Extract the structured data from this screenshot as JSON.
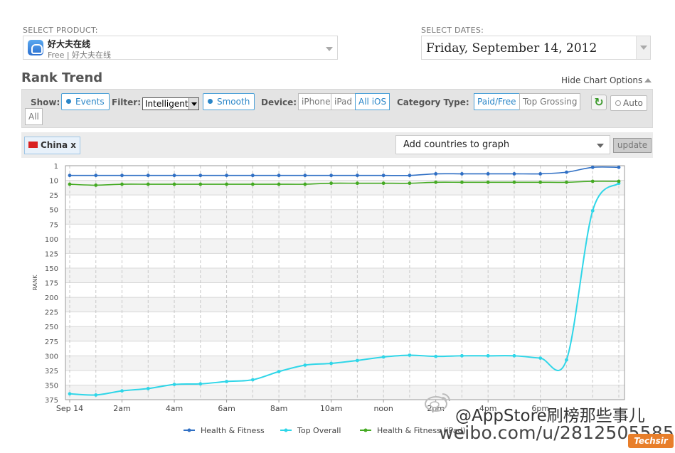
{
  "product": {
    "label": "SELECT PRODUCT:",
    "name": "好大夫在线",
    "subtitle": "Free | 好大夫在线",
    "icon": "heart-app-icon"
  },
  "dates": {
    "label": "SELECT DATES:",
    "value": "Friday, September 14, 2012"
  },
  "header": {
    "title": "Rank Trend",
    "hide_options": "Hide Chart Options"
  },
  "toolbar": {
    "show_label": "Show:",
    "events": "Events",
    "filter_label": "Filter:",
    "filter_value": "Intelligent",
    "smooth": "Smooth",
    "device_label": "Device:",
    "devices": [
      "iPhone",
      "iPad",
      "All iOS"
    ],
    "device_active": "All iOS",
    "category_label": "Category Type:",
    "categories": [
      "Paid/Free",
      "Top Grossing",
      "All"
    ],
    "category_active": "Paid/Free",
    "auto": "Auto"
  },
  "countries": {
    "selected": "China",
    "remove": "x",
    "add_placeholder": "Add countries to graph",
    "update": "update"
  },
  "colors": {
    "health_fitness": "#2f6fc4",
    "top_overall": "#2fd6e8",
    "health_fitness_ipad": "#44aa22",
    "accent": "#2a86c8"
  },
  "chart_data": {
    "type": "line",
    "ylabel": "RANK",
    "xlabel": "",
    "yticks": [
      1,
      10,
      25,
      50,
      75,
      100,
      125,
      150,
      175,
      200,
      225,
      250,
      275,
      300,
      325,
      350,
      375
    ],
    "ylim": [
      1,
      375
    ],
    "y_reversed": true,
    "xticks": [
      "Sep 14",
      "2am",
      "4am",
      "6am",
      "8am",
      "10am",
      "noon",
      "2pm",
      "4pm",
      "6pm"
    ],
    "x_hours": [
      0,
      2,
      4,
      6,
      8,
      10,
      12,
      14,
      16,
      18
    ],
    "xlim": [
      0,
      21
    ],
    "grid": true,
    "legend_position": "bottom",
    "series": [
      {
        "name": "Health & Fitness",
        "x": [
          0,
          1,
          2,
          3,
          4,
          5,
          6,
          7,
          8,
          9,
          10,
          11,
          12,
          13,
          14,
          15,
          16,
          17,
          18,
          19,
          20,
          21
        ],
        "values": [
          7,
          7,
          7,
          7,
          7,
          7,
          7,
          7,
          7,
          7,
          7,
          7,
          7,
          7,
          6,
          6,
          6,
          6,
          6,
          5,
          2,
          2
        ]
      },
      {
        "name": "Top Overall",
        "x": [
          0,
          1,
          2,
          3,
          4,
          5,
          6,
          7,
          8,
          9,
          10,
          11,
          12,
          13,
          14,
          15,
          16,
          17,
          18,
          19,
          20,
          21
        ],
        "values": [
          365,
          367,
          360,
          356,
          349,
          348,
          344,
          341,
          327,
          316,
          313,
          308,
          302,
          299,
          301,
          300,
          300,
          300,
          304,
          307,
          52,
          13
        ]
      },
      {
        "name": "Health & Fitness (iPad)",
        "x": [
          0,
          1,
          2,
          3,
          4,
          5,
          6,
          7,
          8,
          9,
          10,
          11,
          12,
          13,
          14,
          15,
          16,
          17,
          18,
          19,
          20,
          21
        ],
        "values": [
          14,
          15,
          14,
          14,
          14,
          14,
          14,
          14,
          14,
          14,
          13,
          13,
          13,
          13,
          12,
          12,
          12,
          12,
          12,
          12,
          11,
          11
        ]
      }
    ]
  },
  "watermark": {
    "line1": "@AppStore刷榜那些事儿",
    "line2": "weibo.com/u/2812505585",
    "badge": "Techsir"
  }
}
